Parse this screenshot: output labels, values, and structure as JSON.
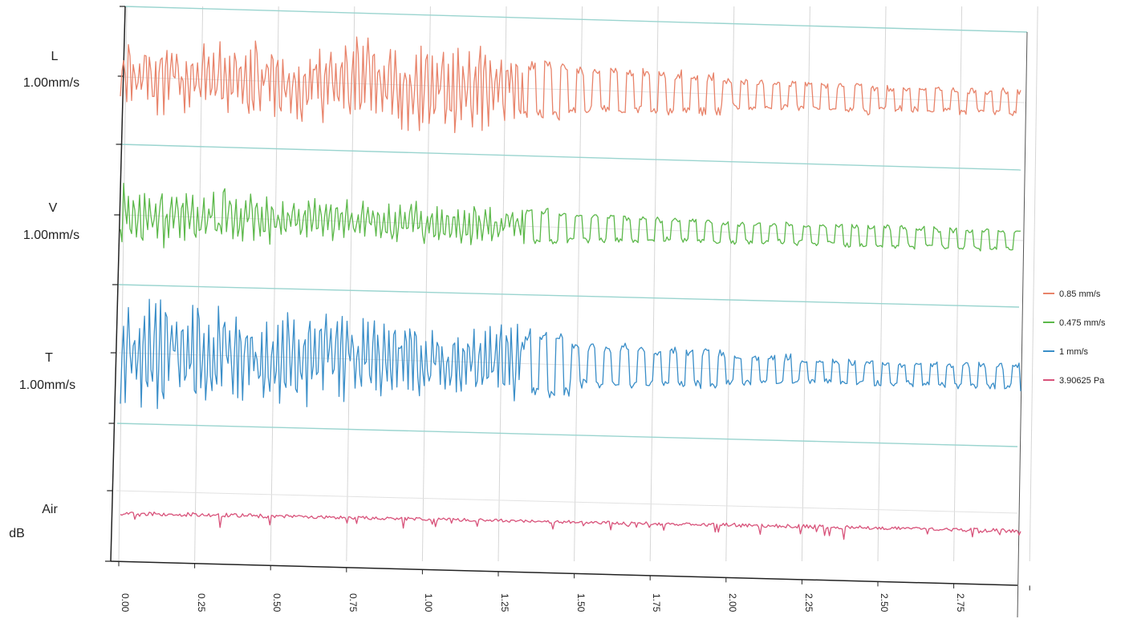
{
  "chart_data": {
    "type": "line",
    "x_ticks": [
      "0.00",
      "0.25",
      "0.50",
      "0.75",
      "1.00",
      "1.25",
      "1.50",
      "1.75",
      "2.00",
      "2.25",
      "2.50",
      "2.75"
    ],
    "xlim": [
      0,
      2.95
    ],
    "grid": true,
    "legend_position": "right",
    "channels": [
      {
        "label": "L",
        "unit": "1.00mm/s",
        "color": "#e8836a",
        "legend": "0.85 mm/s",
        "amplitudes": [
          0.75,
          0.85,
          0.85,
          0.95,
          0.95,
          0.7,
          0.55,
          0.5,
          0.35,
          0.35,
          0.3,
          0.3
        ]
      },
      {
        "label": "V",
        "unit": "1.00mm/s",
        "color": "#5cb84a",
        "legend": "0.475 mm/s",
        "amplitudes": [
          0.85,
          0.75,
          0.55,
          0.55,
          0.5,
          0.5,
          0.4,
          0.35,
          0.3,
          0.3,
          0.3,
          0.3
        ]
      },
      {
        "label": "T",
        "unit": "1.00mm/s",
        "color": "#3a8ec8",
        "legend": "1 mm/s",
        "amplitudes": [
          1.0,
          0.9,
          0.9,
          0.75,
          0.7,
          0.7,
          0.45,
          0.4,
          0.3,
          0.25,
          0.25,
          0.25
        ]
      },
      {
        "label": "Air",
        "unit": "dB",
        "color": "#d8527a",
        "legend": "3.90625 Pa",
        "amplitudes": [
          0.25,
          0.25,
          0.2,
          0.2,
          0.2,
          0.2,
          0.2,
          0.2,
          0.25,
          0.25,
          0.2,
          0.25
        ]
      }
    ]
  }
}
